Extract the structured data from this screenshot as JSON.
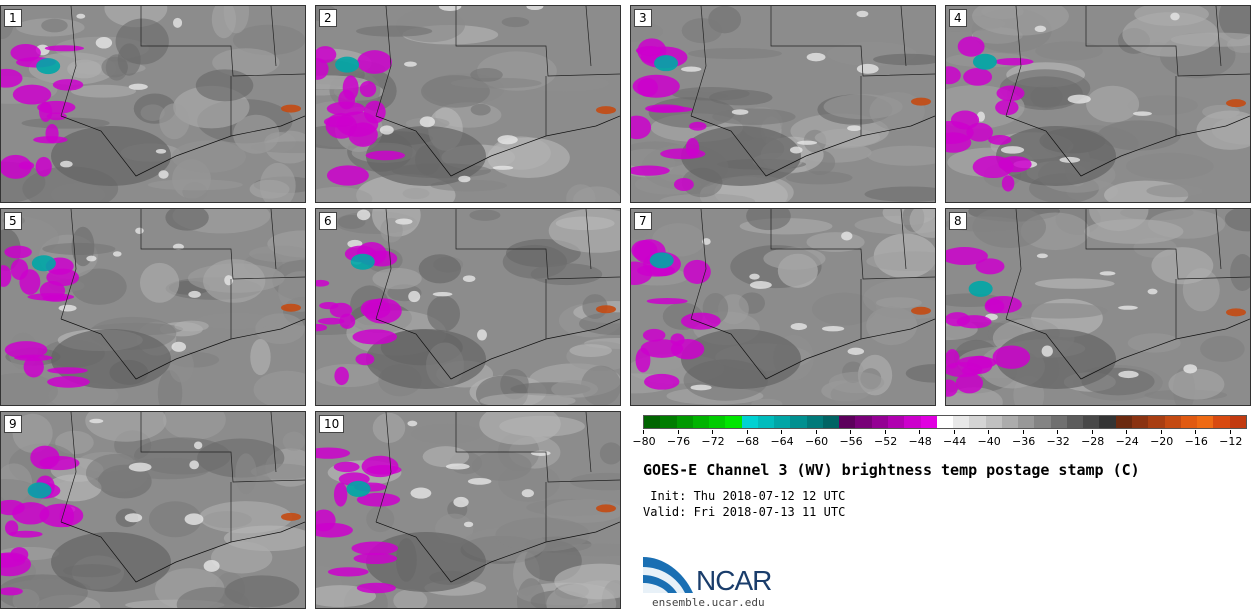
{
  "panels": [
    {
      "label": "1"
    },
    {
      "label": "2"
    },
    {
      "label": "3"
    },
    {
      "label": "4"
    },
    {
      "label": "5"
    },
    {
      "label": "6"
    },
    {
      "label": "7"
    },
    {
      "label": "8"
    },
    {
      "label": "9"
    },
    {
      "label": "10"
    }
  ],
  "colorbar": {
    "min": -80,
    "max": -10,
    "tick_labels": [
      "-80",
      "-76",
      "-72",
      "-68",
      "-64",
      "-60",
      "-56",
      "-52",
      "-48",
      "-44",
      "-40",
      "-36",
      "-32",
      "-28",
      "-24",
      "-20",
      "-16",
      "-12"
    ],
    "colors": [
      "#006400",
      "#007d00",
      "#009900",
      "#00b300",
      "#00cc00",
      "#00e600",
      "#00d2d2",
      "#00bcbc",
      "#00a6a6",
      "#009090",
      "#007a7a",
      "#006464",
      "#5c005c",
      "#780078",
      "#940094",
      "#b000b0",
      "#cc00cc",
      "#e000e0",
      "#ffffff",
      "#e8e8e8",
      "#d4d4d4",
      "#c0c0c0",
      "#acacac",
      "#989898",
      "#848484",
      "#707070",
      "#5c5c5c",
      "#484848",
      "#343434",
      "#6b2a10",
      "#8a3312",
      "#a83e12",
      "#c44a12",
      "#e05a12",
      "#ee6a14",
      "#d84a10",
      "#c23a10"
    ]
  },
  "title": "GOES-E Channel 3 (WV) brightness temp postage stamp (C)",
  "init": " Init: Thu 2018-07-12 12 UTC",
  "valid": "Valid: Fri 2018-07-13 11 UTC",
  "logo": {
    "text": "NCAR",
    "url": "ensemble.ucar.edu"
  }
}
